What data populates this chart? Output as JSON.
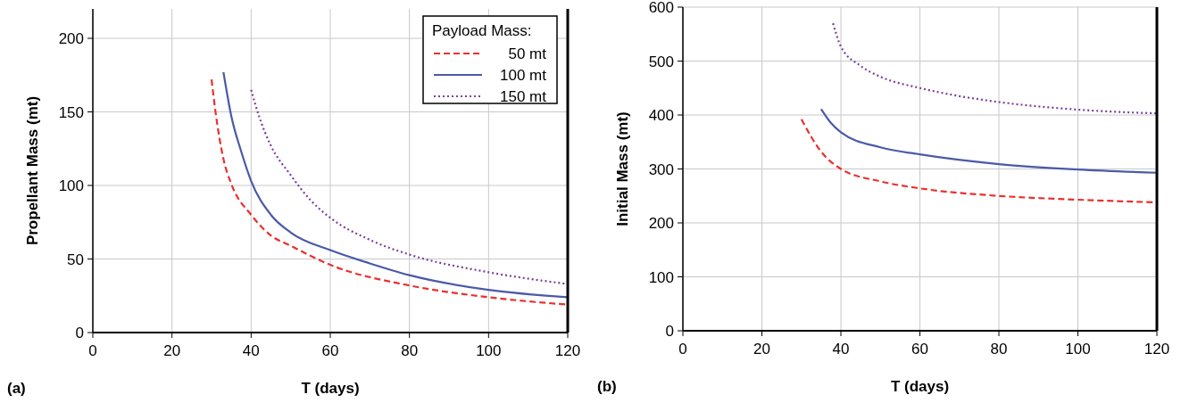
{
  "chart_data": [
    {
      "type": "line",
      "xlabel": "T (days)",
      "ylabel": "Propellant Mass (mt)",
      "annotations": [
        "(a)"
      ],
      "legend_title": "Payload Mass:",
      "legend": "top right",
      "grid": true,
      "xlim": [
        0,
        120
      ],
      "ylim": [
        0,
        220
      ],
      "xticks": [
        0,
        20,
        40,
        60,
        80,
        100,
        120
      ],
      "yticks": [
        0,
        50,
        100,
        150,
        200
      ],
      "series": [
        {
          "name": "50 mt",
          "color": "#e8312f",
          "line_style": "dashed",
          "x": [
            30,
            31,
            33,
            35,
            40,
            45,
            50,
            60,
            80,
            100,
            120
          ],
          "values": [
            172,
            150,
            118,
            101,
            80,
            66,
            59,
            46,
            32,
            24,
            19
          ]
        },
        {
          "name": "100 mt",
          "color": "#4a5aa8",
          "line_style": "solid",
          "x": [
            33,
            35,
            37.5,
            40,
            45,
            50,
            60,
            70,
            80,
            100,
            120
          ],
          "values": [
            177,
            147,
            123,
            103,
            80,
            68,
            56,
            47,
            39,
            29,
            24
          ]
        },
        {
          "name": "150 mt",
          "color": "#7b3f9e",
          "line_style": "dotted",
          "x": [
            40,
            42,
            45,
            50,
            55,
            60,
            70,
            80,
            100,
            120
          ],
          "values": [
            165,
            147,
            127,
            107,
            90,
            78,
            63,
            53,
            41,
            33
          ]
        }
      ]
    },
    {
      "type": "line",
      "xlabel": "T (days)",
      "ylabel": "Initial Mass (mt)",
      "annotations": [
        "(b)"
      ],
      "grid": true,
      "xlim": [
        0,
        120
      ],
      "ylim": [
        0,
        600
      ],
      "xticks": [
        0,
        20,
        40,
        60,
        80,
        100,
        120
      ],
      "yticks": [
        0,
        100,
        200,
        300,
        400,
        500,
        600
      ],
      "series": [
        {
          "color": "#e8312f",
          "line_style": "dashed",
          "x": [
            30,
            35,
            40,
            50,
            60,
            80,
            100,
            120
          ],
          "values": [
            392,
            332,
            300,
            277,
            264,
            250,
            243,
            238
          ]
        },
        {
          "color": "#4a5aa8",
          "line_style": "solid",
          "x": [
            35,
            37.5,
            40,
            50,
            60,
            80,
            100,
            120
          ],
          "values": [
            411,
            385,
            368,
            340,
            327,
            309,
            299,
            293
          ]
        },
        {
          "color": "#7b3f9e",
          "line_style": "dotted",
          "x": [
            38,
            40,
            45,
            50,
            60,
            70,
            80,
            100,
            120
          ],
          "values": [
            570,
            527,
            491,
            471,
            450,
            435,
            424,
            410,
            403
          ]
        }
      ]
    }
  ]
}
